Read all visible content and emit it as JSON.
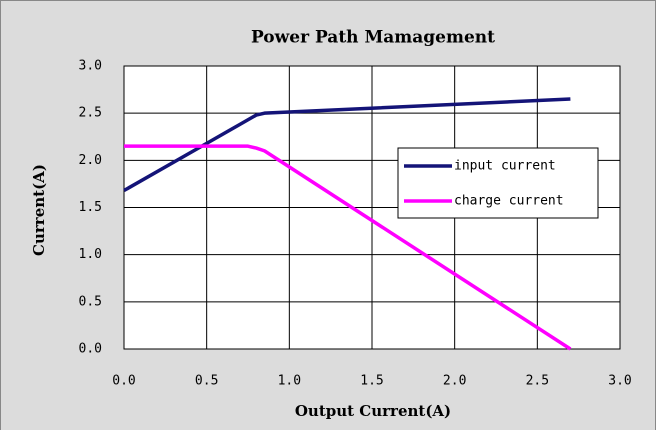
{
  "chart_data": {
    "type": "line",
    "title": "Power Path Mamagement",
    "x_label": "Output Current(A)",
    "y_label": "Current(A)",
    "x": [
      0,
      0.5,
      0.7,
      0.75,
      0.8,
      0.85,
      2.7
    ],
    "series": [
      {
        "name": "input current",
        "color": "#141478",
        "values": [
          1.68,
          2.18,
          2.38,
          2.43,
          2.48,
          2.5,
          2.65
        ]
      },
      {
        "name": "charge current",
        "color": "#ff00ff",
        "values": [
          2.15,
          2.15,
          2.15,
          2.15,
          2.13,
          2.1,
          0
        ]
      }
    ],
    "xlim": [
      0,
      3
    ],
    "ylim": [
      0,
      3
    ],
    "xticks": [
      {
        "value": 0,
        "label": "0.0"
      },
      0.5,
      {
        "value": 1,
        "label": "1.0"
      },
      1.5,
      {
        "value": 2,
        "label": "2.0"
      },
      2.5,
      {
        "value": 3,
        "label": "3.0"
      }
    ],
    "yticks": [
      {
        "value": 0,
        "label": "0.0"
      },
      0.5,
      {
        "value": 1,
        "label": "1.0"
      },
      1.5,
      {
        "value": 2,
        "label": "2.0"
      },
      2.5,
      {
        "value": 3,
        "label": "3.0"
      }
    ],
    "grid": true,
    "legend": "right"
  }
}
